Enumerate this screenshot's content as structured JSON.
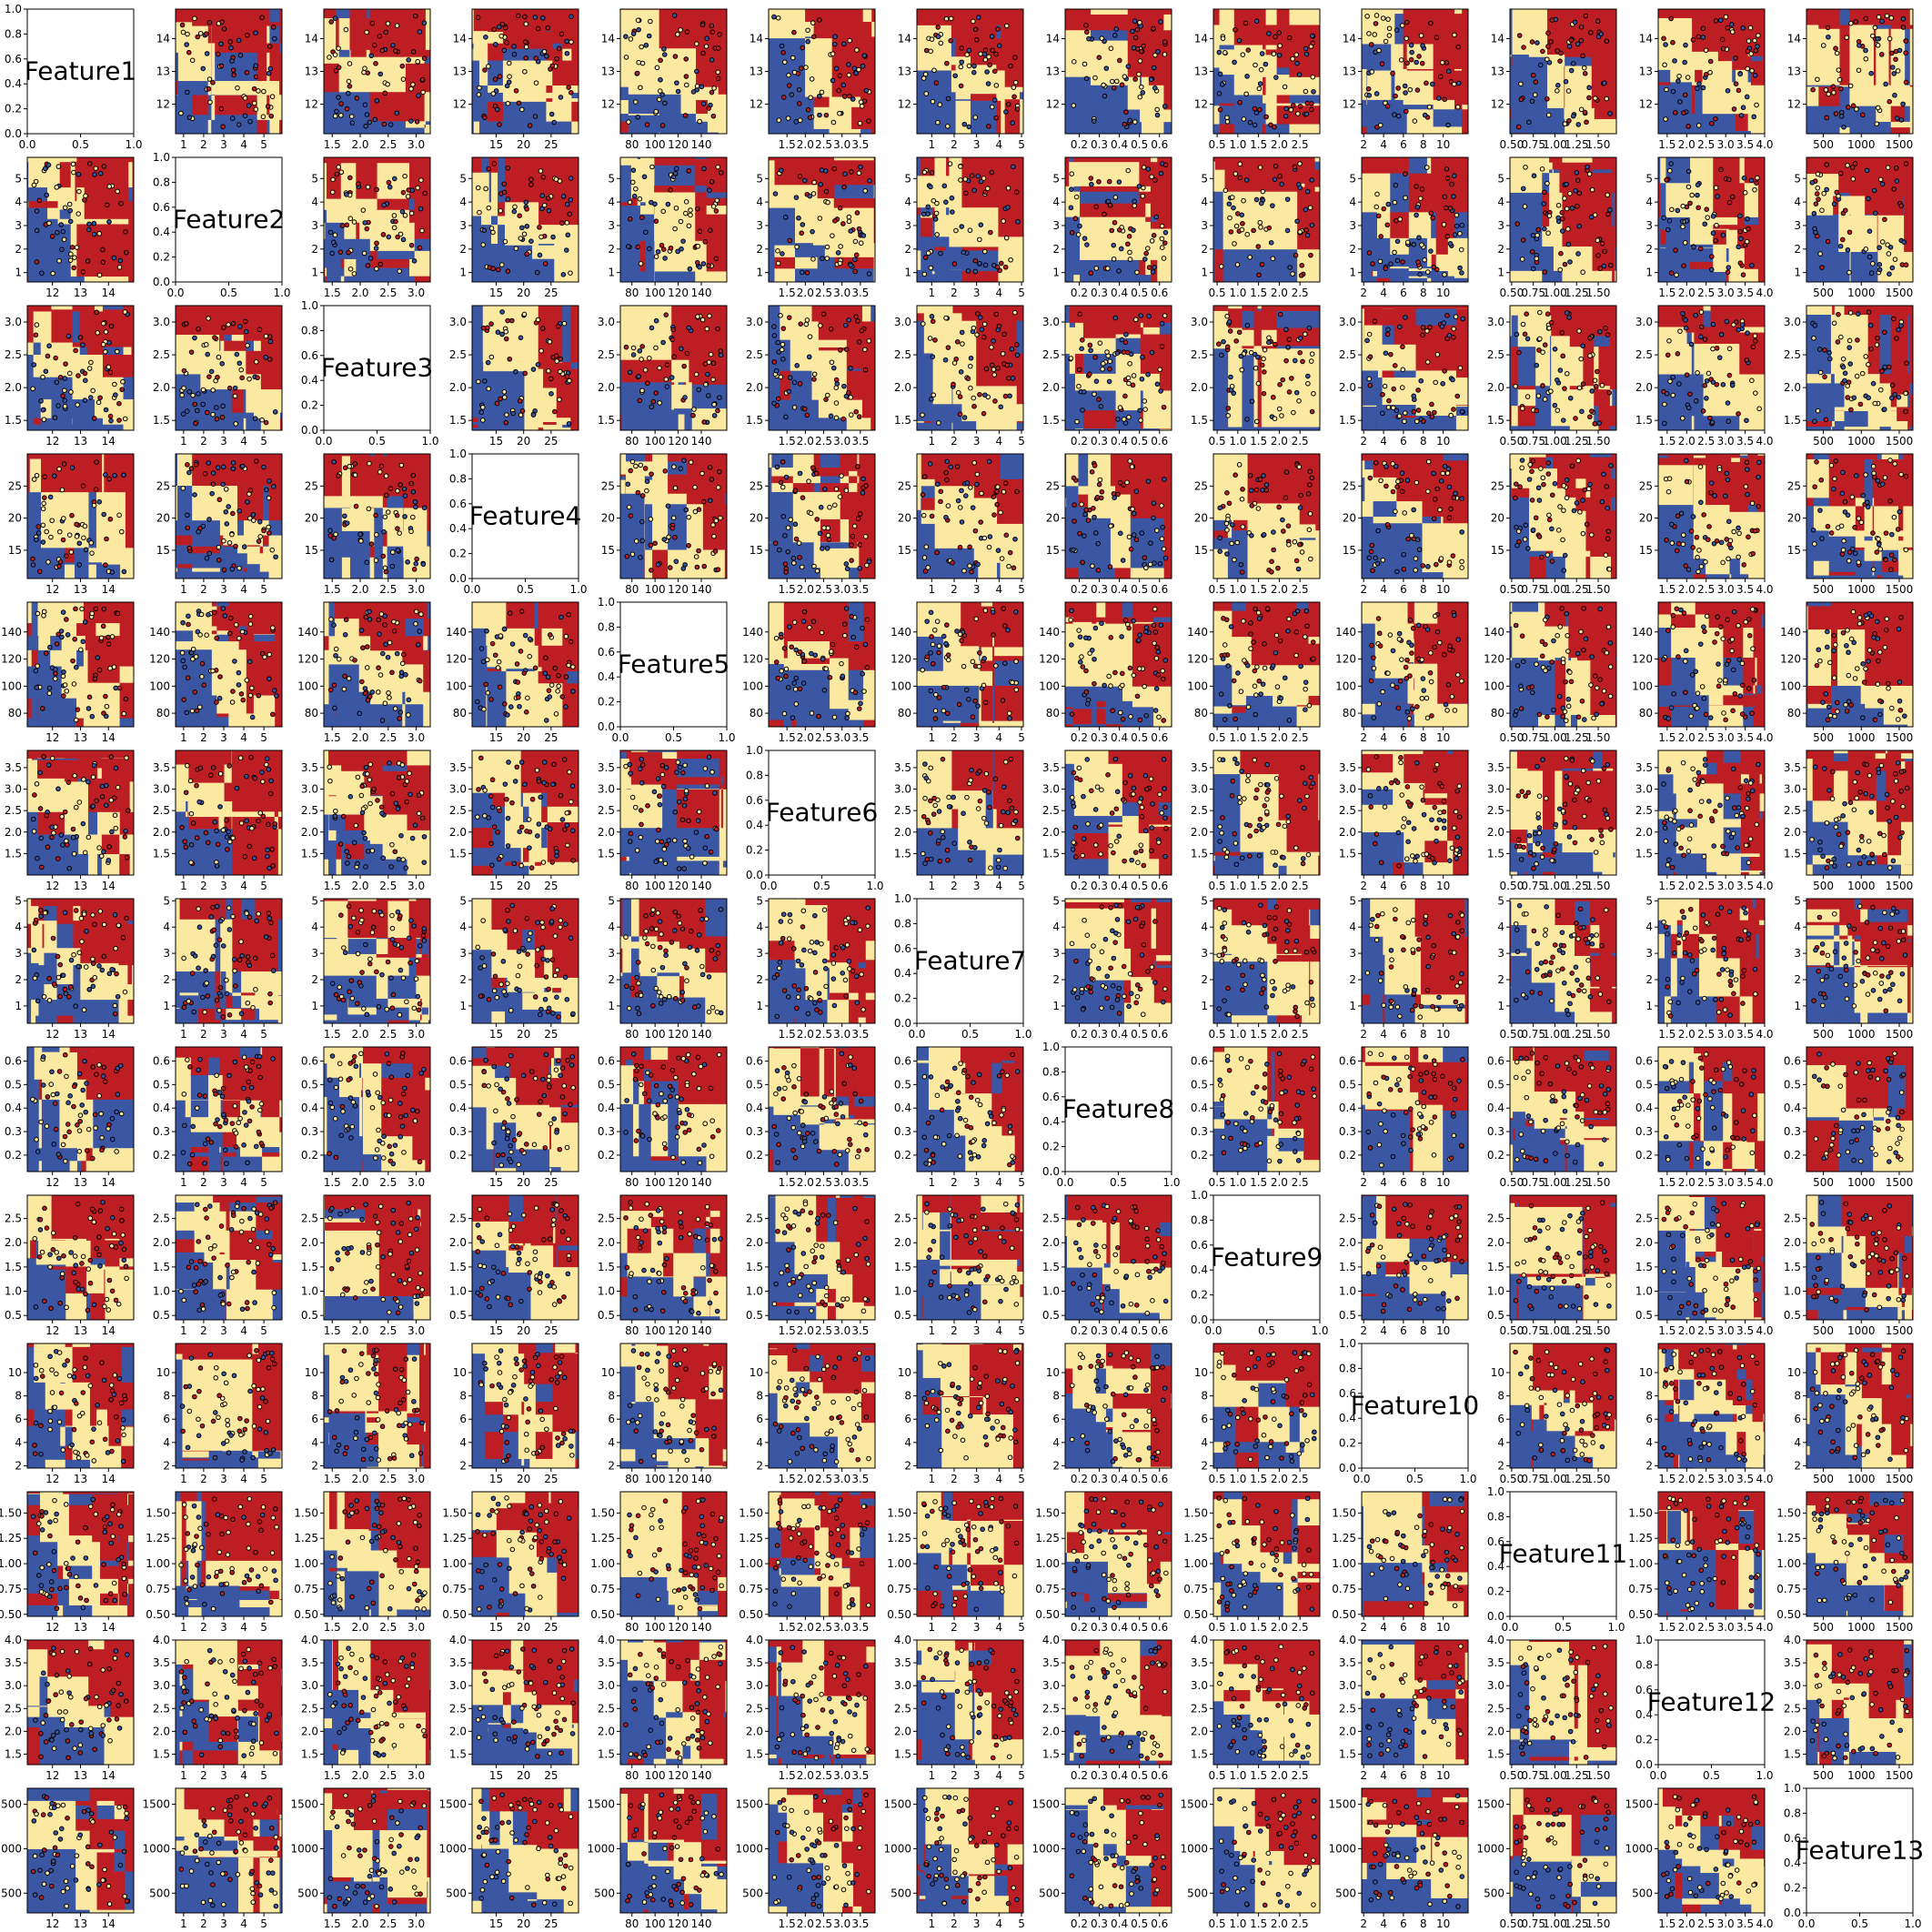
{
  "colors": {
    "class0": "#bd1e24",
    "class1": "#fce9a1",
    "class2": "#3b56a3",
    "axes": "#000000",
    "point_edge": "#000000"
  },
  "chart_data": {
    "type": "pairwise-decision-surface",
    "description_type": "scatter",
    "classes": [
      "class0",
      "class1",
      "class2"
    ],
    "grid": false,
    "features": [
      {
        "name": "Feature1",
        "range": [
          11.1,
          14.9
        ],
        "ticks": [
          12,
          13,
          14
        ],
        "ticklabels": [
          "12",
          "13",
          "14"
        ]
      },
      {
        "name": "Feature2",
        "range": [
          0.6,
          5.9
        ],
        "ticks": [
          1,
          2,
          3,
          4,
          5
        ],
        "ticklabels": [
          "1",
          "2",
          "3",
          "4",
          "5"
        ]
      },
      {
        "name": "Feature3",
        "range": [
          1.35,
          3.25
        ],
        "ticks": [
          1.5,
          2.0,
          2.5,
          3.0
        ],
        "ticklabels": [
          "1.5",
          "2.0",
          "2.5",
          "3.0"
        ]
      },
      {
        "name": "Feature4",
        "range": [
          10.6,
          30.0
        ],
        "ticks": [
          15,
          20,
          25
        ],
        "ticklabels": [
          "15",
          "20",
          "25"
        ]
      },
      {
        "name": "Feature5",
        "range": [
          70,
          162
        ],
        "ticks": [
          80,
          100,
          120,
          140
        ],
        "ticklabels": [
          "80",
          "100",
          "120",
          "140"
        ]
      },
      {
        "name": "Feature6",
        "range": [
          1.0,
          3.9
        ],
        "ticks": [
          1.5,
          2.0,
          2.5,
          3.0,
          3.5
        ],
        "ticklabels": [
          "1.5",
          "2.0",
          "2.5",
          "3.0",
          "3.5"
        ]
      },
      {
        "name": "Feature7",
        "range": [
          0.34,
          5.08
        ],
        "ticks": [
          1,
          2,
          3,
          4,
          5
        ],
        "ticklabels": [
          "1",
          "2",
          "3",
          "4",
          "5"
        ]
      },
      {
        "name": "Feature8",
        "range": [
          0.13,
          0.66
        ],
        "ticks": [
          0.2,
          0.3,
          0.4,
          0.5,
          0.6
        ],
        "ticklabels": [
          "0.2",
          "0.3",
          "0.4",
          "0.5",
          "0.6"
        ]
      },
      {
        "name": "Feature9",
        "range": [
          0.41,
          2.98
        ],
        "ticks": [
          0.5,
          1.0,
          1.5,
          2.0,
          2.5
        ],
        "ticklabels": [
          "0.5",
          "1.0",
          "1.5",
          "2.0",
          "2.5"
        ]
      },
      {
        "name": "Feature10",
        "range": [
          1.8,
          12.5
        ],
        "ticks": [
          2,
          4,
          6,
          8,
          10
        ],
        "ticklabels": [
          "2",
          "4",
          "6",
          "8",
          "10"
        ]
      },
      {
        "name": "Feature11",
        "range": [
          0.48,
          1.71
        ],
        "ticks": [
          0.5,
          0.75,
          1.0,
          1.25,
          1.5
        ],
        "ticklabels": [
          "0.50",
          "0.75",
          "1.00",
          "1.25",
          "1.50"
        ]
      },
      {
        "name": "Feature12",
        "range": [
          1.27,
          4.0
        ],
        "ticks": [
          1.5,
          2.0,
          2.5,
          3.0,
          3.5,
          4.0
        ],
        "ticklabels": [
          "1.5",
          "2.0",
          "2.5",
          "3.0",
          "3.5",
          "4.0"
        ]
      },
      {
        "name": "Feature13",
        "range": [
          278,
          1680
        ],
        "ticks": [
          500,
          1000,
          1500
        ],
        "ticklabels": [
          "500",
          "1000",
          "1500"
        ]
      }
    ],
    "diagonal_axis": {
      "ticks": [
        0,
        0.5,
        1.0
      ],
      "ticklabels": [
        "0.0",
        "0.5",
        "1.0"
      ],
      "yticks": [
        0,
        0.2,
        0.4,
        0.6,
        0.8,
        1.0
      ],
      "yticklabels": [
        "0.0",
        "0.2",
        "0.4",
        "0.6",
        "0.8",
        "1.0"
      ]
    }
  }
}
